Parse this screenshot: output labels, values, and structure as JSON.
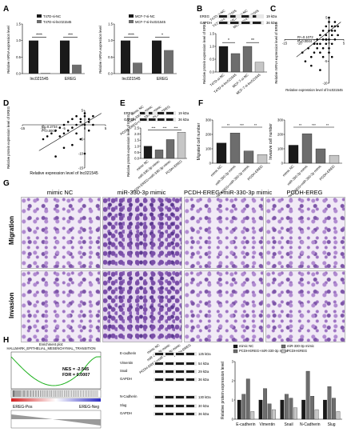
{
  "panels": [
    "A",
    "B",
    "C",
    "D",
    "E",
    "F",
    "G",
    "H",
    "I"
  ],
  "colors": {
    "black": "#1a1a1a",
    "gray": "#6d6d6d",
    "light": "#c6c6c6",
    "white": "#ffffff",
    "green": "#1db11d",
    "red": "#d32020",
    "blue": "#2c2cc4"
  },
  "A": {
    "ylabel": "Relative mRNA expression level",
    "left": {
      "legend": [
        "T47D-si-NC",
        "T47D-si-lnc021545"
      ],
      "categories": [
        "lnc021545",
        "EREG"
      ],
      "stars": [
        "****",
        "***"
      ],
      "yticks": [
        "0.0",
        "0.5",
        "1.0",
        "1.5"
      ],
      "chart_data": {
        "type": "bar",
        "categories": [
          "lnc021545",
          "EREG"
        ],
        "series": [
          {
            "name": "T47D-si-NC",
            "values": [
              1.0,
              1.0
            ]
          },
          {
            "name": "T47D-si-lnc021545",
            "values": [
              0.02,
              0.27
            ]
          }
        ],
        "ylim": [
          0,
          1.5
        ]
      }
    },
    "right": {
      "legend": [
        "MCF-7-si-NC",
        "MCF-7-si-lnc021545"
      ],
      "categories": [
        "lnc021545",
        "EREG"
      ],
      "stars": [
        "****",
        "*"
      ],
      "yticks": [
        "0.0",
        "0.5",
        "1.0",
        "1.5"
      ],
      "chart_data": {
        "type": "bar",
        "categories": [
          "lnc021545",
          "EREG"
        ],
        "series": [
          {
            "name": "MCF-7-si-NC",
            "values": [
              1.0,
              1.0
            ]
          },
          {
            "name": "MCF-7-si-lnc021545",
            "values": [
              0.33,
              0.71
            ]
          }
        ],
        "ylim": [
          0,
          1.5
        ]
      }
    }
  },
  "B": {
    "blot_labels": [
      "EREG",
      "GAPDH"
    ],
    "kda": [
      "19 kDa",
      "36 kDa"
    ],
    "lanes": [
      "T47D-si-NC",
      "T47D-si-lnc021545",
      "MCF-7-si-NC",
      "MCF-7-si-lnc021545"
    ],
    "ylabel": "Relative protein expression level of EREG",
    "stars": [
      "*",
      "**"
    ],
    "yticks": [
      "0.0",
      "0.5",
      "1.0",
      "1.5"
    ],
    "chart_data": {
      "type": "bar",
      "categories": [
        "T47D-si-NC",
        "T47D-si-lnc021545",
        "MCF-7-si-NC",
        "MCF-7-si-lnc021545"
      ],
      "values": [
        1.0,
        0.72,
        1.0,
        0.38
      ],
      "ylim": [
        0,
        1.5
      ]
    }
  },
  "C": {
    "xlabel": "Relative expression level of lnc021545",
    "ylabel": "Relative mRNA expression level of EREG",
    "stats": [
      "R²=0.1072",
      "P=0.0044"
    ],
    "xticks": [
      "-15",
      "-10",
      "-5",
      "0",
      "5"
    ],
    "yticks": [
      "-10",
      "-5",
      "0",
      "5"
    ],
    "chart_data": {
      "type": "scatter",
      "x": [
        -9,
        -7,
        -6,
        -5,
        -5,
        -4,
        -4,
        -3,
        -3,
        -3,
        -2,
        -2,
        -2,
        -1,
        -1,
        -1,
        0,
        0,
        0,
        0,
        1,
        1,
        1,
        2,
        2,
        2,
        3,
        -8,
        -6,
        -4,
        -2,
        0,
        1,
        2,
        -3,
        -1,
        0,
        1,
        3
      ],
      "y": [
        -3,
        -2,
        -4,
        -1,
        -3,
        0,
        -2,
        -1,
        1,
        -3,
        0,
        -2,
        2,
        -1,
        1,
        3,
        0,
        -2,
        2,
        4,
        -1,
        1,
        3,
        0,
        2,
        4,
        1,
        -5,
        -6,
        -1,
        -4,
        -3,
        -4,
        3,
        -7,
        0,
        5,
        2,
        3
      ],
      "xlim": [
        -15,
        5
      ],
      "ylim": [
        -10,
        5
      ]
    }
  },
  "D": {
    "xlabel": "Relative expression level of lnc021545",
    "ylabel": "Relative protein expression level of EREG",
    "stats": [
      "R²=0.2734",
      "P<0.0001"
    ],
    "xticks": [
      "-15",
      "-10",
      "-5",
      "0",
      "5"
    ],
    "yticks": [
      "-15",
      "-10",
      "-5",
      "0",
      "5"
    ],
    "chart_data": {
      "type": "scatter",
      "x": [
        -10,
        -9,
        -8,
        -7,
        -6,
        -6,
        -5,
        -5,
        -4,
        -4,
        -3,
        -3,
        -2,
        -2,
        -2,
        -1,
        -1,
        0,
        0,
        0,
        1,
        1,
        2,
        2,
        -3,
        -5,
        -1,
        0,
        1,
        -7
      ],
      "y": [
        -5,
        -4,
        -3,
        -2,
        -4,
        -1,
        -3,
        0,
        -2,
        1,
        -1,
        2,
        0,
        -3,
        3,
        1,
        2,
        0,
        3,
        4,
        1,
        2,
        3,
        0,
        -7,
        -8,
        -5,
        -10,
        -2,
        -11
      ],
      "xlim": [
        -15,
        5
      ],
      "ylim": [
        -15,
        5
      ]
    }
  },
  "E": {
    "lanes": [
      "mimic NC",
      "miR-330-3p mimic",
      "PCDH-EREG+miR-330-3p mimic",
      "PCDH-EREG"
    ],
    "blot_labels": [
      "EREG",
      "GAPDH"
    ],
    "kda": [
      "19 kDa",
      "36 kDa"
    ],
    "ylabel": "Relative protein expression level of EREG",
    "stars": [
      "***",
      "***",
      "***"
    ],
    "yticks": [
      "0.0",
      "0.5",
      "1.0",
      "1.5",
      "2.0",
      "2.5"
    ],
    "chart_data": {
      "type": "bar",
      "categories": [
        "mimic NC",
        "miR-330-3p mimic",
        "PCDH-EREG+miR-330-3p mimic",
        "PCDH-EREG"
      ],
      "values": [
        1.0,
        0.7,
        1.55,
        2.15
      ],
      "ylim": [
        0,
        2.5
      ]
    }
  },
  "F": {
    "left": {
      "ylabel": "Migrated cell number",
      "stars": [
        "**",
        "***",
        "**"
      ],
      "yticks": [
        "0",
        "100",
        "200",
        "300"
      ],
      "chart_data": {
        "type": "bar",
        "categories": [
          "mimic NC",
          "miR-330-3p mimic",
          "PCDH-EREG+miR-330-3p mimic",
          "PCDH-EREG"
        ],
        "values": [
          140,
          210,
          85,
          60
        ],
        "ylim": [
          0,
          300
        ]
      }
    },
    "right": {
      "ylabel": "Invasive cell number",
      "stars": [
        "**",
        "***",
        "**"
      ],
      "yticks": [
        "0",
        "100",
        "200",
        "300"
      ],
      "chart_data": {
        "type": "bar",
        "categories": [
          "mimic NC",
          "miR-330-3p mimic",
          "PCDH-EREG+miR-330-3p mimic",
          "PCDH-EREG"
        ],
        "values": [
          125,
          205,
          100,
          55
        ],
        "ylim": [
          0,
          300
        ]
      }
    },
    "categories": [
      "mimic NC",
      "miR-330-3p mimic",
      "PCDH-EREG+miR-330-3p mimic",
      "PCDH-EREG"
    ]
  },
  "G": {
    "columns": [
      "mimic NC",
      "miR-330-3p mimic",
      "PCDH-EREG+miR-330-3p mimic",
      "PCDH-EREG"
    ],
    "rows": [
      "Migration",
      "Invasion"
    ]
  },
  "H": {
    "title": "Enrichment plot:",
    "subtitle": "HALLMARK_EPITHELIAL_MESENCHYMAL_TRANSITION",
    "nes": "NES = -2.545",
    "fdr": "FDR = 0.0007",
    "pos": "EREG-Pos",
    "neg": "EREG-Neg"
  },
  "I": {
    "lanes": [
      "mimic NC",
      "miR-330-3p mimic",
      "PCDH-EREG+miR-330-3p mimic",
      "PCDH-EREG"
    ],
    "blots": [
      "E-cadherin",
      "Vimentin",
      "Snail",
      "GAPDH",
      "N-Cadherin",
      "Slug",
      "GAPDH"
    ],
    "kda": [
      "125 kDa",
      "54 kDa",
      "29 kDa",
      "36 kDa",
      "130 kDa",
      "30 kDa",
      "36 kDa"
    ],
    "legend": [
      "mimic NC",
      "miR-330-3p mimic",
      "PCDH-EREG+miR-330-3p mimic",
      "PCDH-EREG"
    ],
    "ylabel": "Relative protein expression level",
    "yticks": [
      "0",
      "1",
      "2",
      "3"
    ],
    "chart_data": {
      "type": "bar",
      "categories": [
        "E-cadherin",
        "Vimentin",
        "Snail",
        "N-Cadherin",
        "Slug"
      ],
      "series": [
        {
          "name": "mimic NC",
          "values": [
            1.0,
            1.0,
            1.0,
            1.0,
            1.0
          ]
        },
        {
          "name": "miR-330-3p mimic",
          "values": [
            1.3,
            1.6,
            1.3,
            2.5,
            1.7
          ]
        },
        {
          "name": "PCDH-EREG+miR-330-3p mimic",
          "values": [
            2.1,
            0.8,
            1.1,
            1.2,
            1.1
          ]
        },
        {
          "name": "PCDH-EREG",
          "values": [
            0.4,
            0.5,
            0.6,
            0.5,
            0.4
          ]
        }
      ],
      "ylim": [
        0,
        3
      ]
    }
  }
}
